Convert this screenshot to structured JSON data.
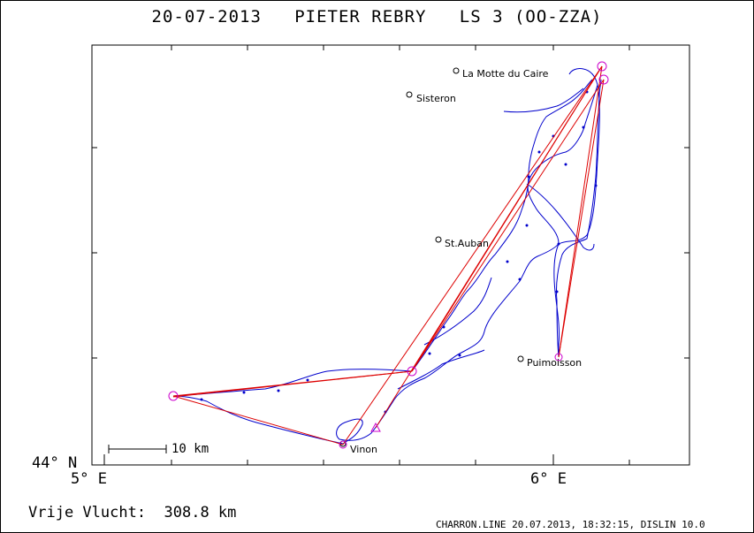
{
  "title": "20-07-2013   PIETER REBRY   LS 3 (OO-ZZA)",
  "axes": {
    "lat_label": "44° N",
    "lon_left_label": "5° E",
    "lon_right_label": "6° E"
  },
  "scale_bar": {
    "label": "10 km"
  },
  "towns": [
    {
      "name": "La Motte du Caire"
    },
    {
      "name": "Sisteron"
    },
    {
      "name": "St.Auban"
    },
    {
      "name": "Puimoisson"
    },
    {
      "name": "Vinon"
    }
  ],
  "distance": "Vrije Vlucht:  308.8 km",
  "footer": "CHARRON.LINE 20.07.2013, 18:32:15, DISLIN 10.0",
  "colors": {
    "track": "#0000cc",
    "task": "#dd0000",
    "turnpoint": "#cc00cc",
    "frame": "#000000"
  }
}
